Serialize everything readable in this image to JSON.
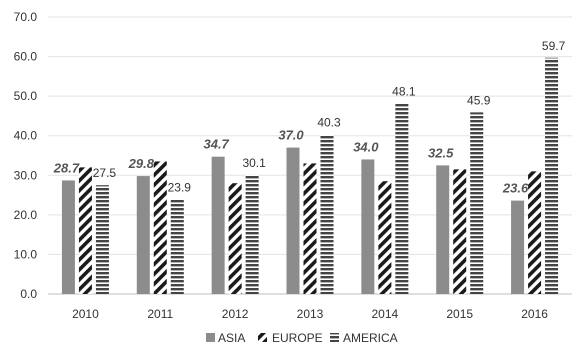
{
  "chart_data": {
    "type": "bar",
    "categories": [
      "2010",
      "2011",
      "2012",
      "2013",
      "2014",
      "2015",
      "2016"
    ],
    "series": [
      {
        "name": "ASIA",
        "values": [
          28.7,
          29.8,
          34.7,
          37.0,
          34.0,
          32.5,
          23.6
        ],
        "labels": [
          "28.7",
          "29.8",
          "34.7",
          "37.0",
          "34.0",
          "32.5",
          "23.6"
        ],
        "color": "#8c8c8c",
        "pattern": "solid"
      },
      {
        "name": "EUROPE",
        "values": [
          32.0,
          33.5,
          28.0,
          33.0,
          28.5,
          31.5,
          31.0
        ],
        "labels": [
          "",
          "",
          "",
          "",
          "",
          "",
          ""
        ],
        "color": "#1a1a1a",
        "pattern": "diagonal-stripes"
      },
      {
        "name": "AMERICA",
        "values": [
          27.5,
          23.9,
          30.1,
          40.3,
          48.1,
          45.9,
          59.7
        ],
        "labels": [
          "27.5",
          "23.9",
          "30.1",
          "40.3",
          "48.1",
          "45.9",
          "59.7"
        ],
        "color": "#444444",
        "pattern": "horizontal-stripes"
      }
    ],
    "y_ticks": [
      "0.0",
      "10.0",
      "20.0",
      "30.0",
      "40.0",
      "50.0",
      "60.0",
      "70.0"
    ],
    "ylim": [
      0,
      70
    ],
    "grid": true,
    "legend_position": "bottom",
    "title": "",
    "xlabel": "",
    "ylabel": ""
  }
}
